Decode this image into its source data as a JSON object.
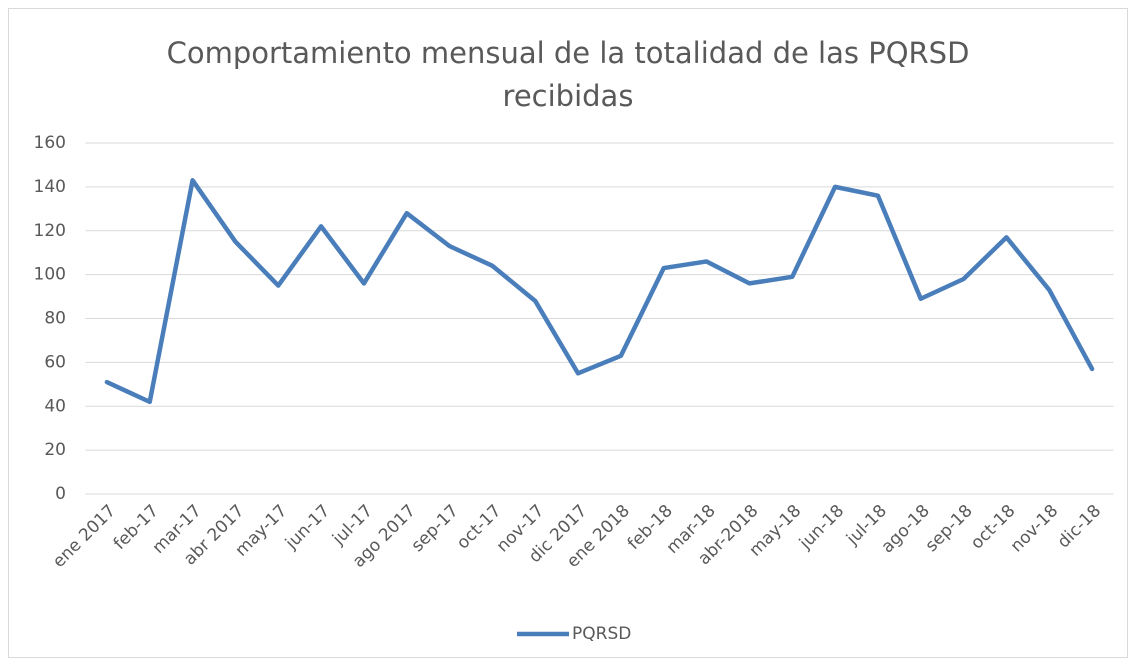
{
  "chart_data": {
    "type": "line",
    "title": "Comportamiento mensual de la totalidad de las PQRSD",
    "subtitle": "recibidas",
    "categories": [
      "ene 2017",
      "feb-17",
      "mar-17",
      "abr 2017",
      "may-17",
      "jun-17",
      "jul-17",
      "ago 2017",
      "sep-17",
      "oct-17",
      "nov-17",
      "dic 2017",
      "ene 2018",
      "feb-18",
      "mar-18",
      "abr-2018",
      "may-18",
      "jun-18",
      "jul-18",
      "ago-18",
      "sep-18",
      "oct-18",
      "nov-18",
      "dic-18"
    ],
    "series": [
      {
        "name": "PQRSD",
        "color": "#4a7ebb",
        "values": [
          51,
          42,
          143,
          115,
          95,
          122,
          96,
          128,
          113,
          104,
          88,
          55,
          63,
          103,
          106,
          96,
          99,
          140,
          136,
          89,
          98,
          117,
          93,
          57
        ]
      }
    ],
    "ylim": [
      0,
      160
    ],
    "yticks": [
      0,
      20,
      40,
      60,
      80,
      100,
      120,
      140,
      160
    ],
    "grid": true,
    "legend": "bottom"
  }
}
